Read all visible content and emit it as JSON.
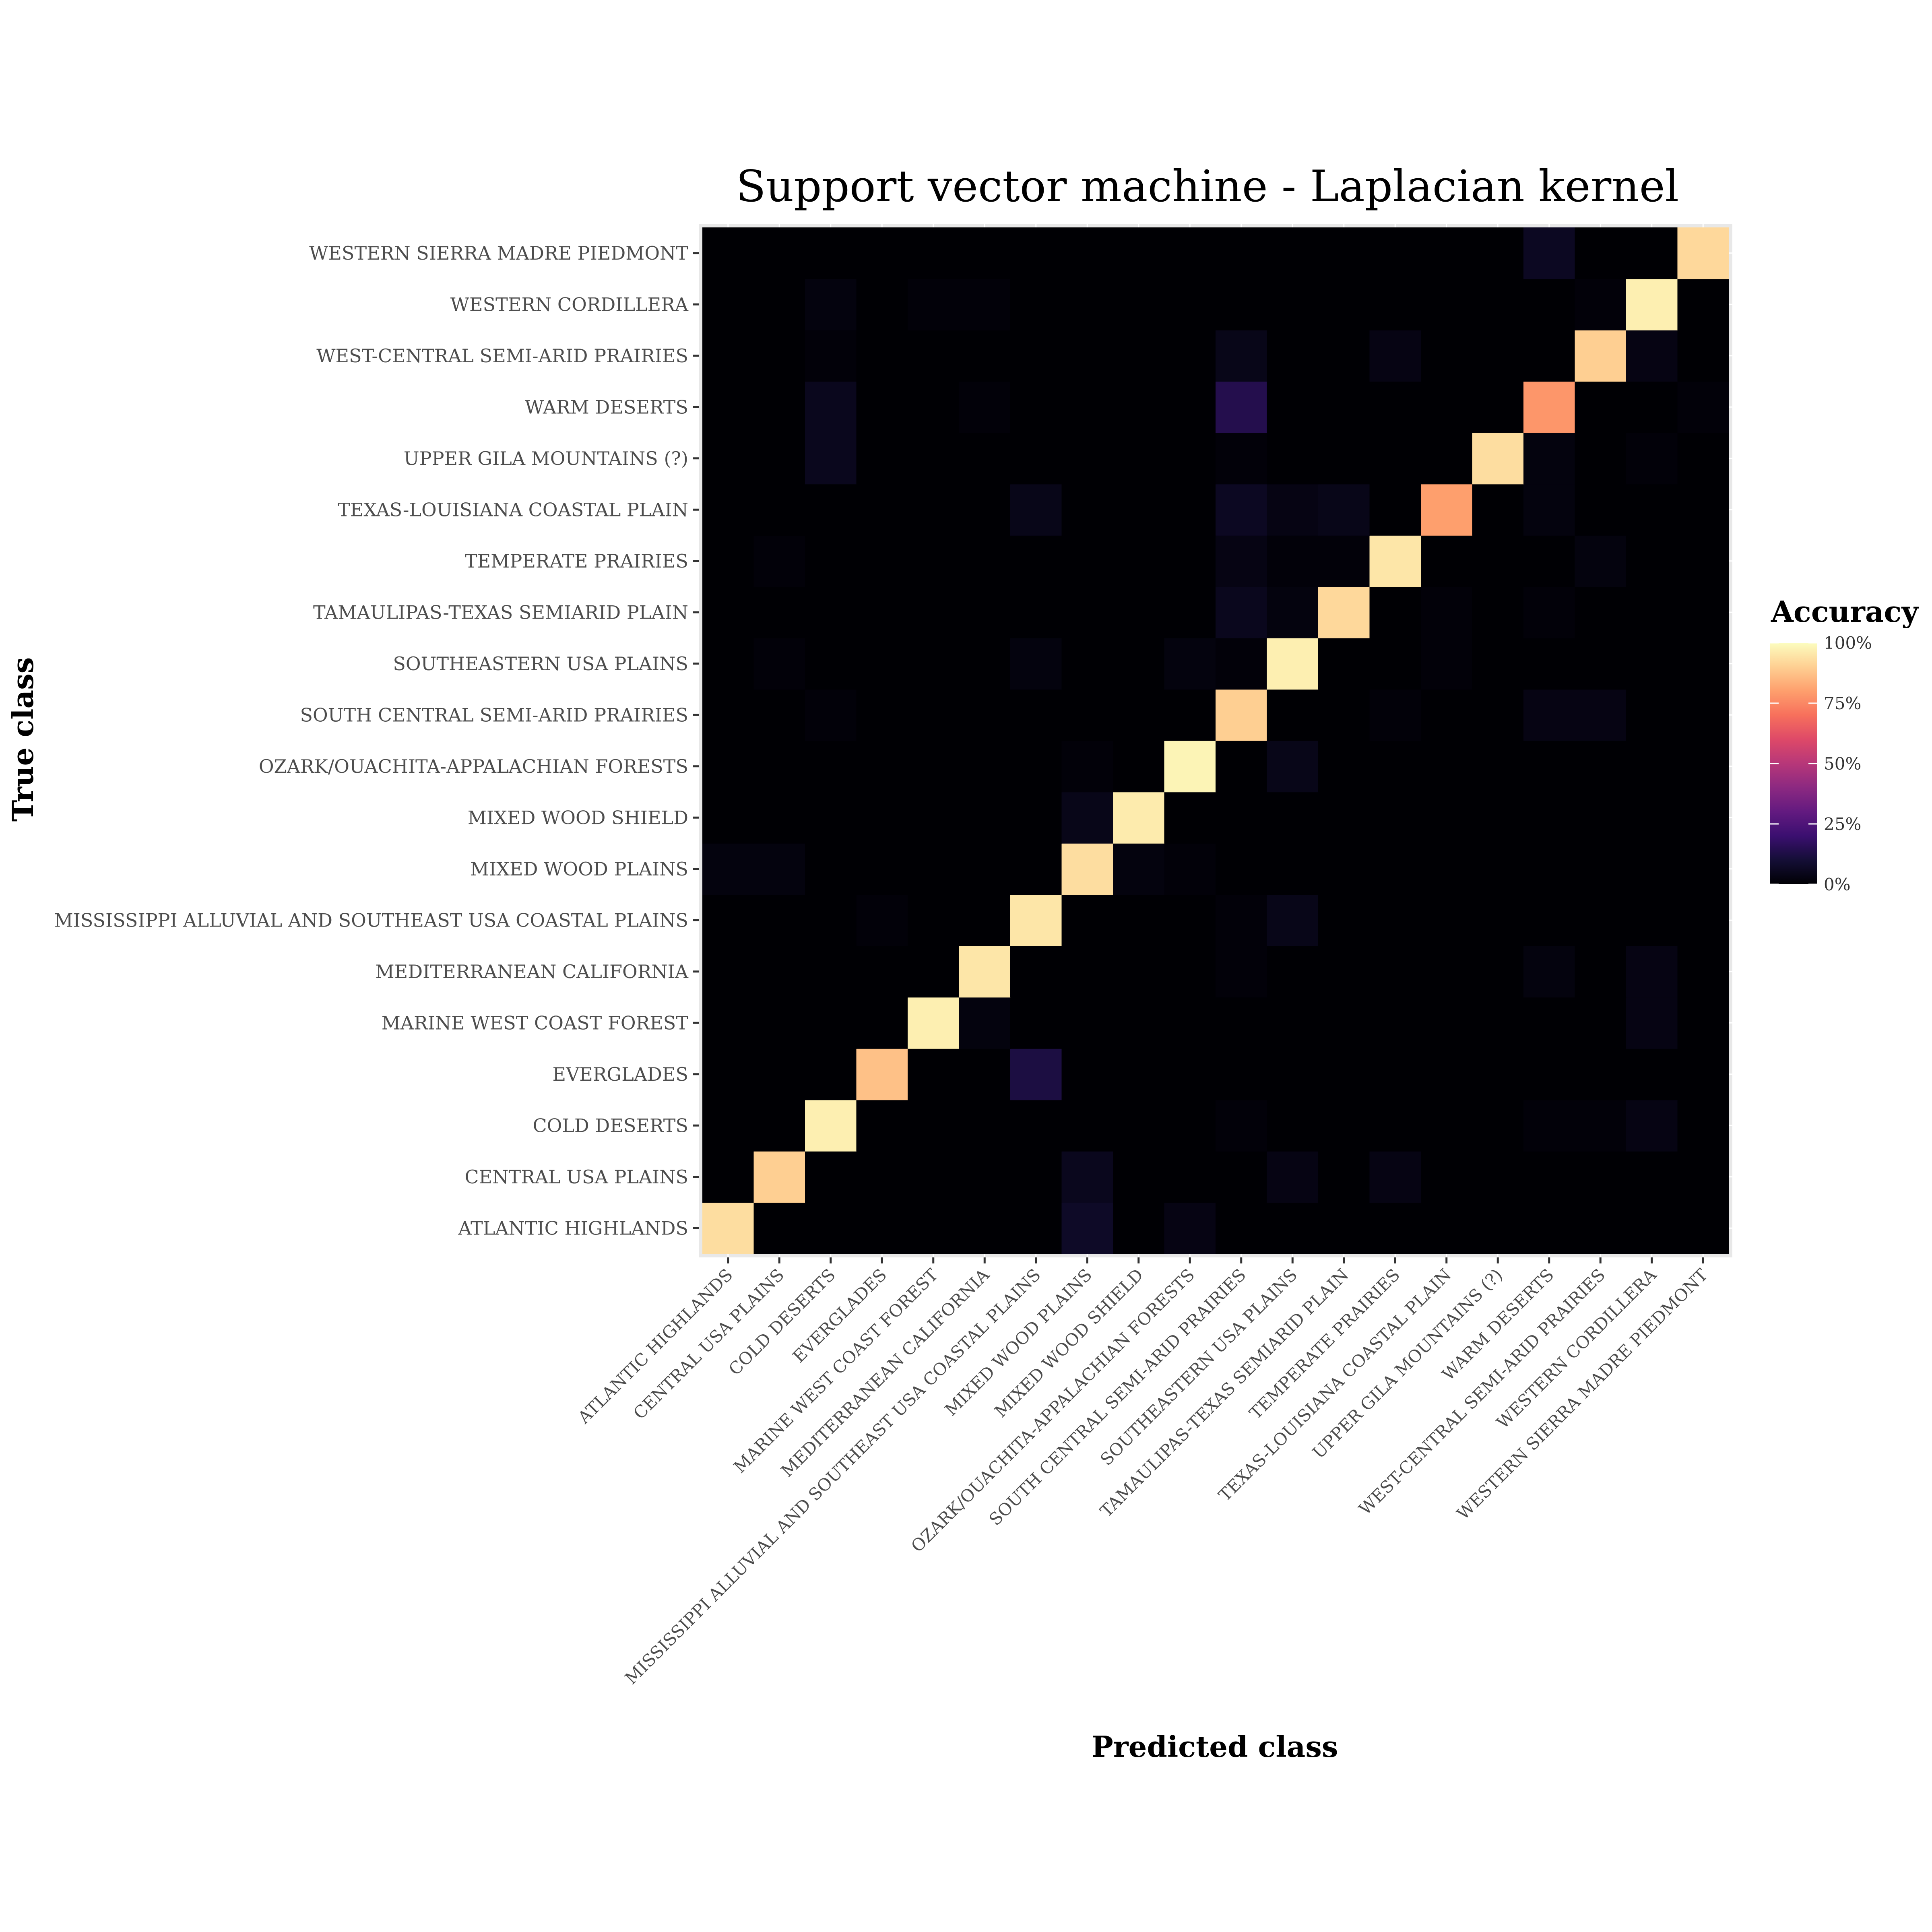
{
  "chart_data": {
    "type": "heatmap",
    "title": "Support vector machine - Laplacian kernel",
    "xlabel": "Predicted class",
    "ylabel": "True class",
    "classes": [
      "ATLANTIC HIGHLANDS",
      "CENTRAL USA PLAINS",
      "COLD DESERTS",
      "EVERGLADES",
      "MARINE WEST COAST FOREST",
      "MEDITERRANEAN CALIFORNIA",
      "MISSISSIPPI ALLUVIAL AND SOUTHEAST USA COASTAL PLAINS",
      "MIXED WOOD PLAINS",
      "MIXED WOOD SHIELD",
      "OZARK/OUACHITA-APPALACHIAN FORESTS",
      "SOUTH CENTRAL SEMI-ARID PRAIRIES",
      "SOUTHEASTERN USA PLAINS",
      "TAMAULIPAS-TEXAS SEMIARID PLAIN",
      "TEMPERATE PRAIRIES",
      "TEXAS-LOUISIANA COASTAL PLAIN",
      "UPPER GILA MOUNTAINS (?)",
      "WARM DESERTS",
      "WEST-CENTRAL SEMI-ARID PRAIRIES",
      "WESTERN CORDILLERA",
      "WESTERN SIERRA MADRE PIEDMONT"
    ],
    "matrix_note": "rows = true class (same order as classes), columns = predicted class; values are accuracy in percent",
    "matrix": [
      [
        93,
        0,
        0,
        0,
        0,
        0,
        0,
        7,
        0,
        3,
        0,
        0,
        0,
        0,
        0,
        0,
        0,
        0,
        0,
        0
      ],
      [
        0,
        90,
        0,
        0,
        0,
        0,
        0,
        5,
        0,
        0,
        0,
        3,
        0,
        3,
        0,
        0,
        0,
        0,
        0,
        0
      ],
      [
        0,
        0,
        97,
        0,
        0,
        0,
        0,
        0,
        0,
        0,
        1,
        0,
        0,
        0,
        0,
        0,
        1,
        1,
        3,
        0
      ],
      [
        0,
        0,
        0,
        87,
        0,
        0,
        12,
        0,
        0,
        0,
        0,
        0,
        0,
        0,
        0,
        0,
        0,
        0,
        0,
        0
      ],
      [
        0,
        0,
        0,
        0,
        97,
        2,
        0,
        0,
        0,
        0,
        0,
        0,
        0,
        0,
        0,
        0,
        0,
        0,
        3,
        0
      ],
      [
        0,
        0,
        0,
        0,
        0,
        95,
        0,
        0,
        0,
        0,
        1,
        0,
        0,
        0,
        0,
        0,
        2,
        0,
        3,
        0
      ],
      [
        0,
        0,
        0,
        1,
        0,
        0,
        95,
        0,
        0,
        0,
        1,
        4,
        0,
        0,
        0,
        0,
        0,
        0,
        0,
        0
      ],
      [
        2,
        2,
        0,
        0,
        0,
        0,
        0,
        93,
        2,
        1,
        0,
        0,
        0,
        0,
        0,
        0,
        0,
        0,
        0,
        0
      ],
      [
        0,
        0,
        0,
        0,
        0,
        0,
        0,
        4,
        96,
        0,
        0,
        0,
        0,
        0,
        0,
        0,
        0,
        0,
        0,
        0
      ],
      [
        0,
        0,
        0,
        0,
        0,
        0,
        0,
        1,
        0,
        98,
        0,
        4,
        0,
        0,
        0,
        0,
        0,
        0,
        0,
        0
      ],
      [
        0,
        0,
        1,
        0,
        0,
        0,
        0,
        0,
        0,
        0,
        90,
        0,
        0,
        1,
        0,
        0,
        3,
        3,
        0,
        0
      ],
      [
        0,
        1,
        0,
        0,
        0,
        0,
        2,
        0,
        0,
        2,
        1,
        97,
        0,
        0,
        1,
        0,
        0,
        0,
        0,
        0
      ],
      [
        0,
        0,
        0,
        0,
        0,
        0,
        0,
        0,
        0,
        0,
        5,
        2,
        92,
        0,
        1,
        0,
        1,
        0,
        0,
        0
      ],
      [
        0,
        1,
        0,
        0,
        0,
        0,
        0,
        0,
        0,
        0,
        3,
        1,
        1,
        95,
        0,
        0,
        0,
        2,
        0,
        0
      ],
      [
        0,
        0,
        0,
        0,
        0,
        0,
        4,
        0,
        0,
        0,
        6,
        3,
        4,
        0,
        80,
        0,
        2,
        0,
        0,
        0
      ],
      [
        0,
        0,
        5,
        0,
        0,
        0,
        0,
        0,
        0,
        0,
        1,
        0,
        0,
        0,
        0,
        93,
        2,
        0,
        1,
        0
      ],
      [
        0,
        0,
        5,
        0,
        0,
        1,
        0,
        0,
        0,
        0,
        14,
        0,
        0,
        0,
        0,
        0,
        78,
        0,
        0,
        1
      ],
      [
        0,
        0,
        1,
        0,
        0,
        0,
        0,
        0,
        0,
        0,
        4,
        0,
        0,
        3,
        0,
        0,
        0,
        90,
        3,
        0
      ],
      [
        0,
        0,
        2,
        0,
        1,
        1,
        0,
        0,
        0,
        0,
        0,
        0,
        0,
        0,
        0,
        0,
        0,
        1,
        97,
        0
      ],
      [
        0,
        0,
        0,
        0,
        0,
        0,
        0,
        0,
        0,
        0,
        0,
        0,
        0,
        0,
        0,
        0,
        6,
        0,
        0,
        92
      ]
    ],
    "colorscale": "magma",
    "legend": {
      "title": "Accuracy",
      "ticks": [
        "0%",
        "25%",
        "50%",
        "75%",
        "100%"
      ],
      "tick_values": [
        0,
        25,
        50,
        75,
        100
      ],
      "placement": "right"
    },
    "range": [
      0,
      100
    ],
    "grid": true
  },
  "colors": {
    "panel_border": "#e8e8e8",
    "grid_line": "#ffffff",
    "tick_mark": "#333333",
    "tick_text": "#4d4d4d",
    "title_text": "#000000"
  }
}
